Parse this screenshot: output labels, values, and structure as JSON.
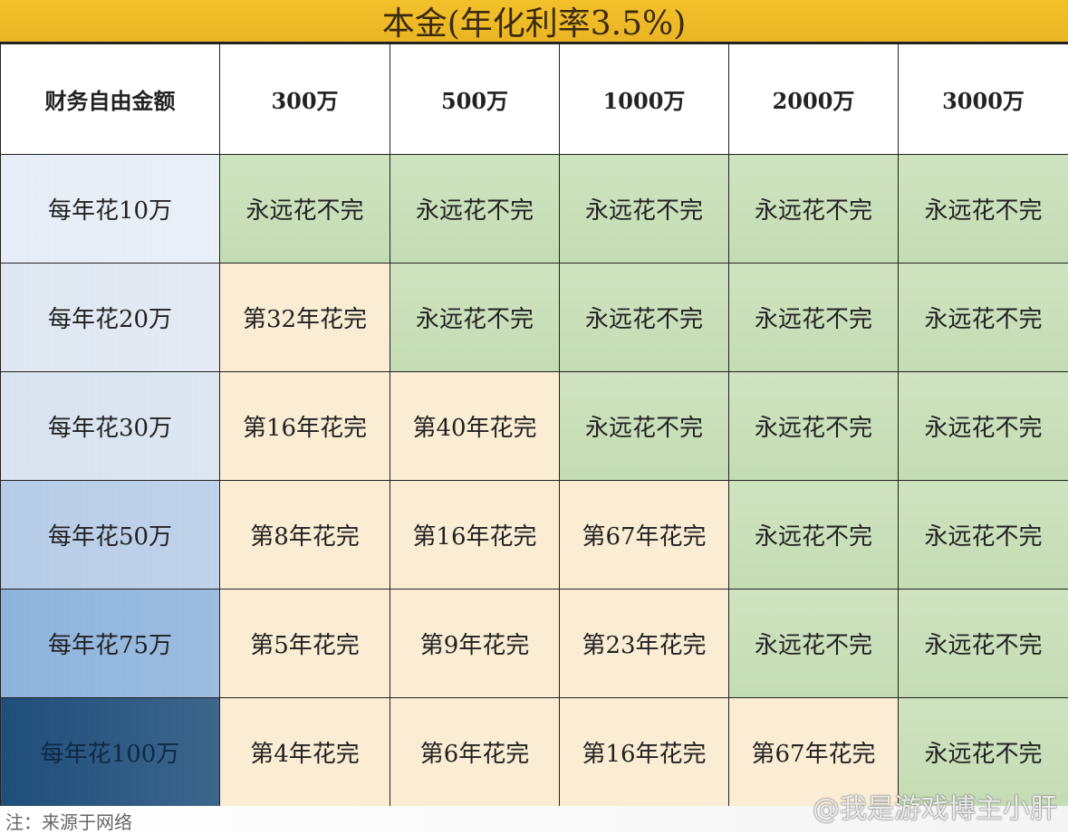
{
  "title": "本金(年化利率3.5%)",
  "chart_data": {
    "type": "table",
    "title": "本金(年化利率3.5%)",
    "corner_header": "财务自由金额",
    "columns": [
      "300万",
      "500万",
      "1000万",
      "2000万",
      "3000万"
    ],
    "rows": [
      {
        "label": "每年花10万",
        "cells": [
          "永远花不完",
          "永远花不完",
          "永远花不完",
          "永远花不完",
          "永远花不完"
        ]
      },
      {
        "label": "每年花20万",
        "cells": [
          "第32年花完",
          "永远花不完",
          "永远花不完",
          "永远花不完",
          "永远花不完"
        ]
      },
      {
        "label": "每年花30万",
        "cells": [
          "第16年花完",
          "第40年花完",
          "永远花不完",
          "永远花不完",
          "永远花不完"
        ]
      },
      {
        "label": "每年花50万",
        "cells": [
          "第8年花完",
          "第16年花完",
          "第67年花完",
          "永远花不完",
          "永远花不完"
        ]
      },
      {
        "label": "每年花75万",
        "cells": [
          "第5年花完",
          "第9年花完",
          "第23年花完",
          "永远花不完",
          "永远花不完"
        ]
      },
      {
        "label": "每年花100万",
        "cells": [
          "第4年花完",
          "第6年花完",
          "第16年花完",
          "第67年花完",
          "永远花不完"
        ]
      }
    ],
    "row_header_colors": [
      "#e6edf6",
      "#dfe7f2",
      "#d8e3ef",
      "#b7cce7",
      "#8db3dc",
      "#1f4e7a"
    ],
    "colors": {
      "never_runs_out": "#c9dfb8",
      "runs_out": "#fbedd3",
      "title_bar": "#f0bc27"
    }
  },
  "footer": {
    "note": "注：来源于网络",
    "watermark": "@我是游戏博主小肝"
  }
}
